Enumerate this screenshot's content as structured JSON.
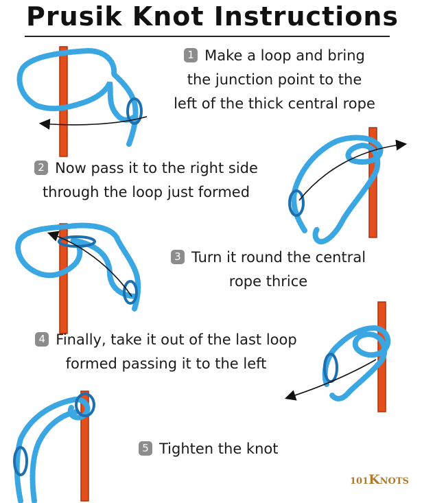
{
  "title": "Prusik Knot Instructions",
  "colors": {
    "rope": "#3aa7e3",
    "rope_edge": "#1d6fb0",
    "cord": "#e34f1c",
    "cord_edge": "#a8330f",
    "badge": "#8c8c8c",
    "logo": "#b07a2c"
  },
  "steps": [
    {
      "number": "1",
      "lines": [
        "Make a loop and bring",
        "the junction point to the",
        "left of the thick central rope"
      ]
    },
    {
      "number": "2",
      "lines": [
        "Now pass it to the right side",
        "through the loop just formed"
      ]
    },
    {
      "number": "3",
      "lines": [
        "Turn it round the central",
        "rope thrice"
      ]
    },
    {
      "number": "4",
      "lines": [
        "Finally, take it out of the last loop",
        "formed passing it to the left"
      ]
    },
    {
      "number": "5",
      "lines": [
        "Tighten the knot"
      ]
    }
  ],
  "logo": {
    "prefix": "101",
    "k": "K",
    "rest": "NOTS"
  }
}
